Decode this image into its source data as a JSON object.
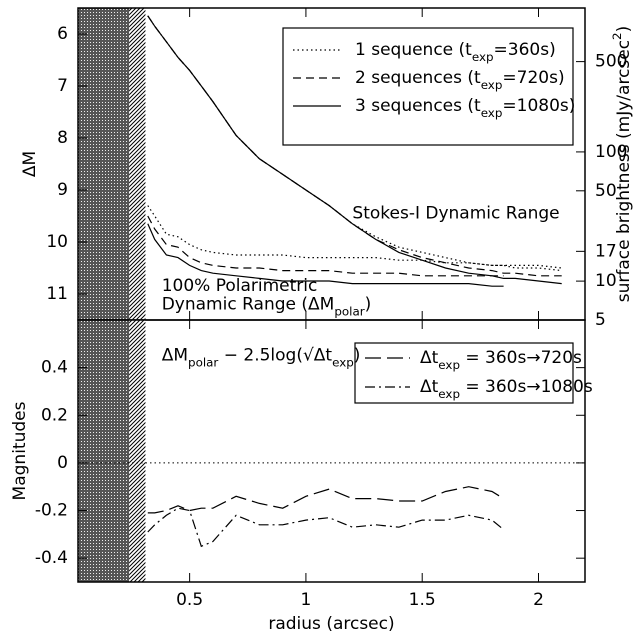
{
  "chart_data": [
    {
      "type": "line",
      "ylabel": "ΔM",
      "y2label": [
        "surface brightness (mJy/arcsec",
        "2",
        ")"
      ],
      "xlim": [
        0.02,
        2.2
      ],
      "xticks": [
        0.5,
        1,
        1.5,
        2
      ],
      "ylim": [
        11.5,
        5.5
      ],
      "yticks": [
        6,
        7,
        8,
        9,
        10,
        11
      ],
      "y2scale": "log",
      "y2lim": [
        5,
        1300
      ],
      "y2ticks": [
        500,
        100,
        50,
        17,
        10,
        5
      ],
      "spans": [
        {
          "x": [
            0.02,
            0.24
          ],
          "pattern": "crosshatch"
        },
        {
          "x": [
            0.24,
            0.31
          ],
          "pattern": "diagonal"
        }
      ],
      "legend": "upper right",
      "x": [
        0.32,
        0.35,
        0.4,
        0.45,
        0.5,
        0.55,
        0.6,
        0.7,
        0.8,
        0.9,
        1.0,
        1.1,
        1.2,
        1.3,
        1.4,
        1.5,
        1.6,
        1.7,
        1.8,
        1.85,
        1.9,
        2.0,
        2.1
      ],
      "series": [
        {
          "name": [
            "1 sequence  (t",
            "exp",
            "=360s)"
          ],
          "dash": "dotted",
          "color": "#000000",
          "values": [
            5.65,
            5.85,
            6.15,
            6.45,
            6.7,
            7.0,
            7.3,
            7.95,
            8.4,
            8.7,
            9.0,
            9.3,
            9.65,
            9.9,
            10.1,
            10.2,
            10.3,
            10.4,
            10.45,
            10.45,
            10.5,
            10.5,
            10.55
          ],
          "polar_values": [
            9.3,
            9.5,
            9.85,
            9.9,
            10.05,
            10.15,
            10.2,
            10.25,
            10.25,
            10.25,
            10.3,
            10.3,
            10.3,
            10.3,
            10.35,
            10.35,
            10.4,
            10.4,
            10.45,
            10.45,
            10.45,
            10.45,
            10.5
          ]
        },
        {
          "name": [
            "2 sequences (t",
            "exp",
            "=720s)"
          ],
          "dash": "dashed",
          "color": "#000000",
          "values": [
            5.65,
            5.85,
            6.15,
            6.45,
            6.7,
            7.0,
            7.3,
            7.95,
            8.4,
            8.7,
            9.0,
            9.3,
            9.65,
            9.95,
            10.15,
            10.3,
            10.4,
            10.5,
            10.55,
            10.6,
            10.6,
            10.65,
            10.65
          ],
          "polar_values": [
            9.5,
            9.75,
            10.05,
            10.1,
            10.3,
            10.4,
            10.45,
            10.5,
            10.5,
            10.55,
            10.55,
            10.55,
            10.6,
            10.6,
            10.6,
            10.65,
            10.65,
            10.65,
            10.65,
            10.65,
            null,
            null,
            null
          ]
        },
        {
          "name": [
            "3 sequences (t",
            "exp",
            "=1080s)"
          ],
          "dash": "solid",
          "color": "#000000",
          "values": [
            5.65,
            5.85,
            6.15,
            6.45,
            6.7,
            7.0,
            7.3,
            7.95,
            8.4,
            8.7,
            9.0,
            9.3,
            9.65,
            9.95,
            10.2,
            10.35,
            10.5,
            10.6,
            10.65,
            10.7,
            10.7,
            10.75,
            10.8
          ],
          "polar_values": [
            9.65,
            9.95,
            10.25,
            10.3,
            10.45,
            10.55,
            10.6,
            10.65,
            10.7,
            10.75,
            10.75,
            10.75,
            10.8,
            10.8,
            10.8,
            10.8,
            10.8,
            10.8,
            10.85,
            10.85,
            null,
            null,
            null
          ]
        }
      ],
      "annotations": {
        "stokes": "Stokes-I Dynamic Range",
        "polar_line1": "100% Polarimetric",
        "polar_line2": [
          "Dynamic Range (ΔM",
          "polar",
          ")"
        ]
      }
    },
    {
      "type": "line",
      "ylabel": "Magnitudes",
      "xlabel": "radius (arcsec)",
      "xlim": [
        0.02,
        2.2
      ],
      "xticks": [
        0.5,
        1,
        1.5,
        2
      ],
      "ylim": [
        -0.5,
        0.6
      ],
      "yticks": [
        -0.4,
        -0.2,
        0,
        0.2,
        0.4
      ],
      "hline": 0,
      "spans": [
        {
          "x": [
            0.02,
            0.24
          ],
          "pattern": "crosshatch"
        },
        {
          "x": [
            0.24,
            0.31
          ],
          "pattern": "diagonal"
        }
      ],
      "legend": "upper right",
      "x": [
        0.32,
        0.35,
        0.4,
        0.45,
        0.5,
        0.55,
        0.6,
        0.7,
        0.8,
        0.9,
        1.0,
        1.1,
        1.2,
        1.3,
        1.4,
        1.5,
        1.6,
        1.7,
        1.8,
        1.85
      ],
      "series": [
        {
          "name": [
            "Δt",
            "exp",
            " = 360s→720s"
          ],
          "dash": "longdash",
          "color": "#000000",
          "values": [
            -0.21,
            -0.21,
            -0.2,
            -0.18,
            -0.2,
            -0.19,
            -0.19,
            -0.14,
            -0.17,
            -0.19,
            -0.14,
            -0.11,
            -0.15,
            -0.15,
            -0.16,
            -0.16,
            -0.12,
            -0.1,
            -0.12,
            -0.15
          ]
        },
        {
          "name": [
            "Δt",
            "exp",
            " = 360s→1080s"
          ],
          "dash": "dashdot",
          "color": "#000000",
          "values": [
            -0.29,
            -0.26,
            -0.22,
            -0.19,
            -0.2,
            -0.35,
            -0.33,
            -0.22,
            -0.26,
            -0.26,
            -0.24,
            -0.23,
            -0.27,
            -0.26,
            -0.27,
            -0.24,
            -0.24,
            -0.22,
            -0.24,
            -0.28
          ]
        }
      ],
      "annotations": {
        "formula": [
          "ΔM",
          "polar",
          " − 2.5log(√Δt",
          "exp",
          ")"
        ]
      }
    }
  ]
}
